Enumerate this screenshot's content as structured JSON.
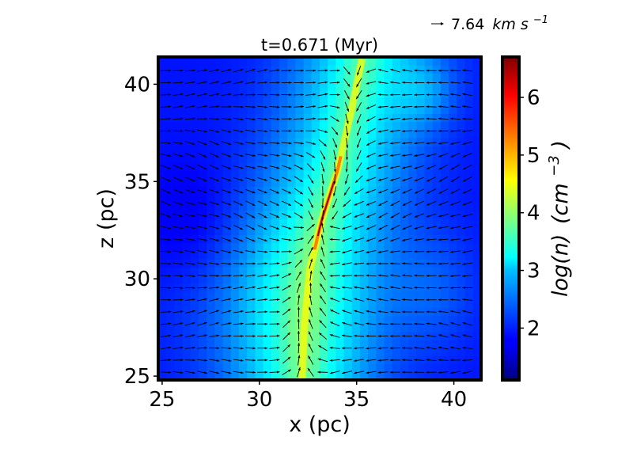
{
  "chart_data": {
    "type": "heatmap",
    "title": "t=0.671 (Myr)",
    "xlabel": "x (pc)",
    "ylabel": "z (pc)",
    "xlim": [
      24.8,
      41.4
    ],
    "ylim": [
      24.8,
      41.4
    ],
    "xticks": [
      25,
      30,
      35,
      40
    ],
    "yticks": [
      25,
      30,
      35,
      40
    ],
    "colorbar": {
      "label_main": "log(n)",
      "label_unit": "(cm",
      "label_exp": "−3",
      "label_close": ")",
      "range": [
        1.1,
        6.7
      ],
      "ticks": [
        2,
        3,
        4,
        5,
        6
      ],
      "colormap": "jet"
    },
    "quiver_key": {
      "value": "7.64",
      "unit": "km s",
      "exp": "−1"
    },
    "field_description": {
      "filament_axis": [
        [
          32.2,
          24.8
        ],
        [
          32.3,
          27.5
        ],
        [
          32.6,
          30.5
        ],
        [
          33.2,
          33.0
        ],
        [
          34.0,
          35.5
        ],
        [
          34.7,
          38.5
        ],
        [
          35.3,
          41.4
        ]
      ],
      "ridge_peak_log_n": 6.5,
      "background_log_n": 1.9
    },
    "colors": {
      "frame": "#000000",
      "arrow": "#000000"
    }
  }
}
